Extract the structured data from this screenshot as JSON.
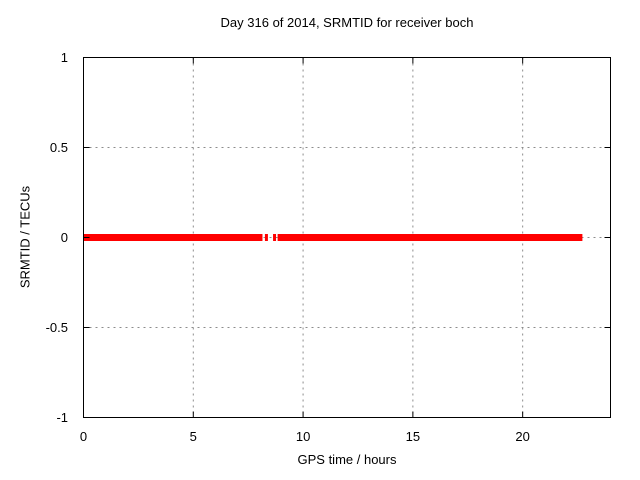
{
  "chart_data": {
    "type": "line",
    "title": "Day 316 of 2014, SRMTID for receiver boch",
    "xlabel": "GPS time / hours",
    "ylabel": "SRMTID / TECUs",
    "xlim": [
      0,
      24
    ],
    "ylim": [
      -1,
      1
    ],
    "xticks": [
      {
        "value": 0,
        "label": "0"
      },
      {
        "value": 5,
        "label": "5"
      },
      {
        "value": 10,
        "label": "10"
      },
      {
        "value": 15,
        "label": "15"
      },
      {
        "value": 20,
        "label": "20"
      }
    ],
    "yticks": [
      {
        "value": 1,
        "label": "1"
      },
      {
        "value": 0.5,
        "label": "0.5"
      },
      {
        "value": 0,
        "label": "0"
      },
      {
        "value": -0.5,
        "label": "-0.5"
      },
      {
        "value": -1,
        "label": "-1"
      }
    ],
    "grid": true,
    "grid_style": "dashed",
    "legend": "none",
    "series": [
      {
        "name": "SRMTID",
        "color": "#ff0000",
        "constant_y": 0,
        "line_thickness_px": 7,
        "segments_x_hours": [
          [
            0,
            8.15
          ],
          [
            8.84,
            22.72
          ]
        ],
        "isolated_points_x_hours": [
          8.33,
          8.7
        ]
      }
    ]
  },
  "colors": {
    "data_line": "#ff0000",
    "grid": "#8c8c8c",
    "axis": "#000000",
    "background": "#ffffff",
    "text": "#000000"
  }
}
